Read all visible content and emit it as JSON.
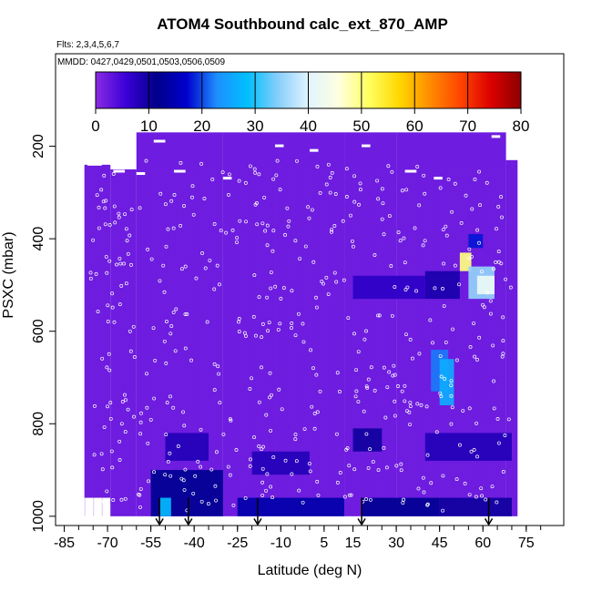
{
  "chart_data": {
    "type": "heatmap",
    "title": "ATOM4 Southbound calc_ext_870_AMP",
    "subtitle_flights": "Flts: 2,3,4,5,6,7",
    "subtitle_dates": "MMDD: 0427,0429,0501,0503,0506,0509",
    "xlabel": "Latitude (deg N)",
    "ylabel": "PSXC (mbar)",
    "xlim": [
      -88,
      88
    ],
    "ylim": [
      1020,
      0
    ],
    "x_ticks": [
      -85,
      -70,
      -55,
      -40,
      -25,
      -10,
      5,
      15,
      30,
      45,
      60,
      75
    ],
    "y_ticks": [
      200,
      400,
      600,
      800,
      1000
    ],
    "colorbar": {
      "ticks": [
        0,
        10,
        20,
        30,
        40,
        50,
        60,
        70,
        80
      ],
      "range": [
        0,
        80
      ],
      "colors": [
        "#8a2be2",
        "#3a00d8",
        "#00008b",
        "#0000cd",
        "#1e90ff",
        "#00bfff",
        "#87cefa",
        "#e0f4ff",
        "#ffffe0",
        "#ffff60",
        "#ffd700",
        "#ff8c00",
        "#ff4500",
        "#dd0000",
        "#8b0000"
      ]
    },
    "background_value": 2,
    "column_extents": [
      {
        "lat_from": -78,
        "lat_to": -69,
        "p_top": 240,
        "p_bottom": 960
      },
      {
        "lat_from": -69,
        "lat_to": -60,
        "p_top": 250,
        "p_bottom": 1000
      },
      {
        "lat_from": -60,
        "lat_to": -30,
        "p_top": 170,
        "p_bottom": 1000
      },
      {
        "lat_from": -30,
        "lat_to": 12,
        "p_top": 170,
        "p_bottom": 1000
      },
      {
        "lat_from": 12,
        "lat_to": 30,
        "p_top": 170,
        "p_bottom": 1000
      },
      {
        "lat_from": 30,
        "lat_to": 68,
        "p_top": 170,
        "p_bottom": 1000
      },
      {
        "lat_from": 68,
        "lat_to": 72,
        "p_top": 230,
        "p_bottom": 1000
      }
    ],
    "features": [
      {
        "lat_from": -55,
        "lat_to": -30,
        "p_from": 900,
        "p_to": 1000,
        "value": 12
      },
      {
        "lat_from": -52,
        "lat_to": -48,
        "p_from": 960,
        "p_to": 1000,
        "value": 28
      },
      {
        "lat_from": -50,
        "lat_to": -35,
        "p_from": 820,
        "p_to": 880,
        "value": 8
      },
      {
        "lat_from": -25,
        "lat_to": 12,
        "p_from": 960,
        "p_to": 1000,
        "value": 14
      },
      {
        "lat_from": -20,
        "lat_to": 0,
        "p_from": 860,
        "p_to": 910,
        "value": 8
      },
      {
        "lat_from": 15,
        "lat_to": 25,
        "p_from": 810,
        "p_to": 860,
        "value": 10
      },
      {
        "lat_from": 18,
        "lat_to": 45,
        "p_from": 960,
        "p_to": 1000,
        "value": 12
      },
      {
        "lat_from": 15,
        "lat_to": 40,
        "p_from": 480,
        "p_to": 530,
        "value": 7
      },
      {
        "lat_from": 40,
        "lat_to": 52,
        "p_from": 470,
        "p_to": 530,
        "value": 9
      },
      {
        "lat_from": 42,
        "lat_to": 48,
        "p_from": 640,
        "p_to": 730,
        "value": 22
      },
      {
        "lat_from": 45,
        "lat_to": 50,
        "p_from": 660,
        "p_to": 760,
        "value": 26
      },
      {
        "lat_from": 55,
        "lat_to": 60,
        "p_from": 390,
        "p_to": 420,
        "value": 18
      },
      {
        "lat_from": 52,
        "lat_to": 56,
        "p_from": 430,
        "p_to": 470,
        "value": 50
      },
      {
        "lat_from": 55,
        "lat_to": 64,
        "p_from": 460,
        "p_to": 530,
        "value": 35
      },
      {
        "lat_from": 58,
        "lat_to": 64,
        "p_from": 480,
        "p_to": 520,
        "value": 42
      },
      {
        "lat_from": 40,
        "lat_to": 70,
        "p_from": 820,
        "p_to": 880,
        "value": 8
      },
      {
        "lat_from": 45,
        "lat_to": 70,
        "p_from": 960,
        "p_to": 1000,
        "value": 10
      }
    ],
    "profile_markers_lat": [
      -52,
      -42,
      -18,
      18,
      62
    ]
  }
}
